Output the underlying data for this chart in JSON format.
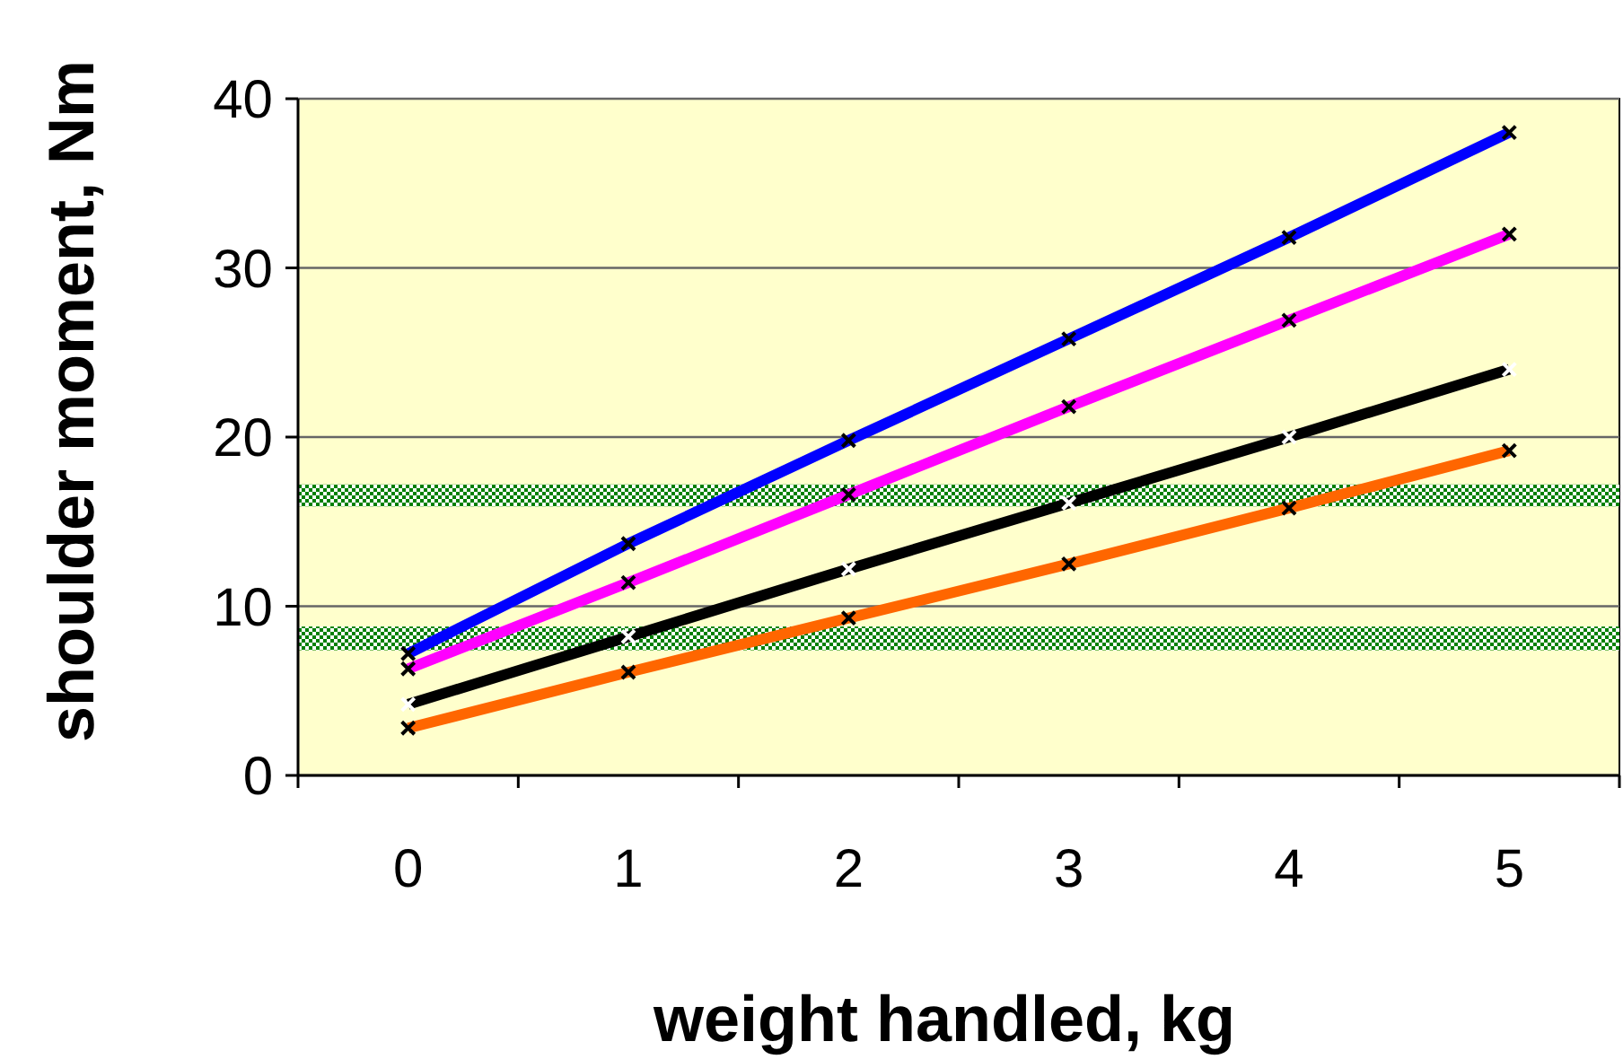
{
  "chart_data": {
    "type": "line",
    "xlabel": "weight handled, kg",
    "ylabel": "shoulder moment, Nm",
    "categories": [
      "0",
      "1",
      "2",
      "3",
      "4",
      "5"
    ],
    "series": [
      {
        "color": "#0000ff",
        "values": [
          7.2,
          13.7,
          19.8,
          25.8,
          31.8,
          38.0
        ]
      },
      {
        "color": "#ff00ff",
        "values": [
          6.3,
          11.4,
          16.6,
          21.8,
          26.9,
          32.0
        ]
      },
      {
        "color": "#000000",
        "values": [
          4.2,
          8.2,
          12.2,
          16.1,
          20.0,
          24.0
        ]
      },
      {
        "color": "#ff6600",
        "values": [
          2.8,
          6.1,
          9.3,
          12.5,
          15.8,
          19.2
        ]
      }
    ],
    "ylim": [
      0,
      40
    ],
    "yticks": [
      0,
      10,
      20,
      30,
      40
    ],
    "grid": "y",
    "marker": "cross",
    "line_style": "solid",
    "bands": [
      {
        "axis": "y",
        "from": 15.9,
        "to": 17.2,
        "color": "#008000"
      },
      {
        "axis": "y",
        "from": 7.4,
        "to": 8.8,
        "color": "#008000"
      }
    ]
  }
}
